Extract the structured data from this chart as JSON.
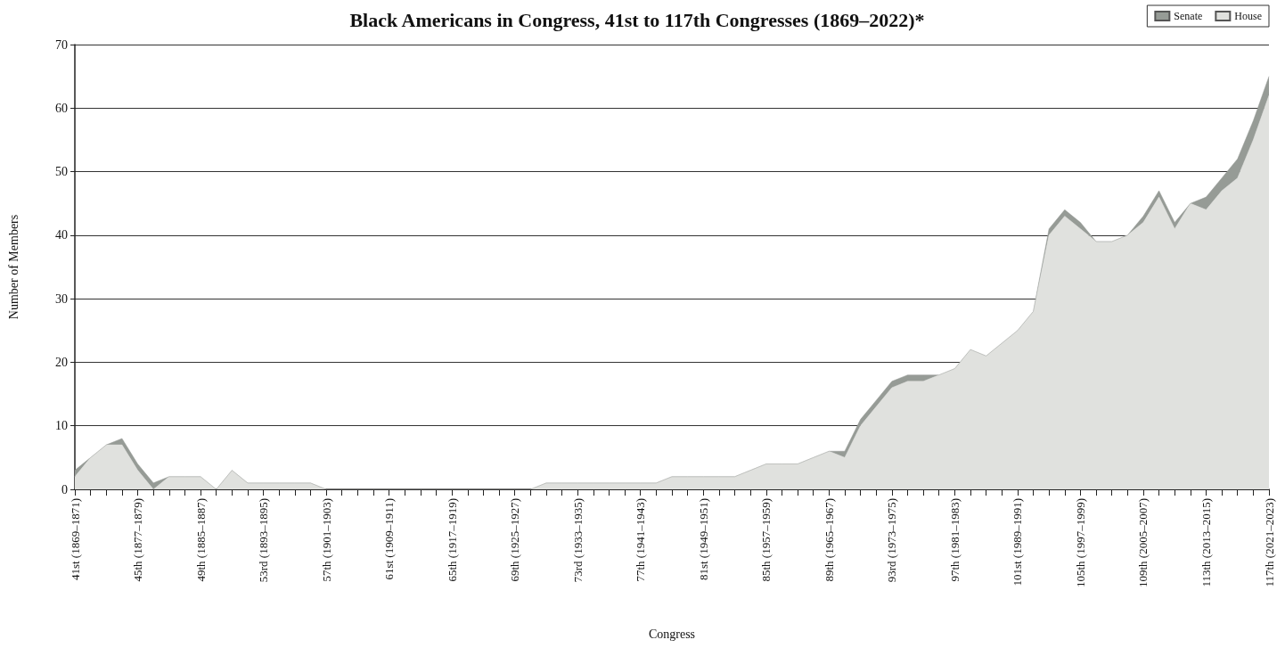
{
  "chart_data": {
    "type": "area",
    "title": "Black Americans in Congress, 41st to 117th Congresses (1869–2022)*",
    "xlabel": "Congress",
    "ylabel": "Number of Members",
    "categories": [
      "41st (1869–1871)",
      null,
      null,
      null,
      "45th (1877–1879)",
      null,
      null,
      null,
      "49th (1885–1887)",
      null,
      null,
      null,
      "53rd (1893–1895)",
      null,
      null,
      null,
      "57th (1901–1903)",
      null,
      null,
      null,
      "61st (1909–1911)",
      null,
      null,
      null,
      "65th (1917–1919)",
      null,
      null,
      null,
      "69th (1925–1927)",
      null,
      null,
      null,
      "73rd (1933–1935)",
      null,
      null,
      null,
      "77th (1941–1943)",
      null,
      null,
      null,
      "81st (1949–1951)",
      null,
      null,
      null,
      "85th (1957–1959)",
      null,
      null,
      null,
      "89th (1965–1967)",
      null,
      null,
      null,
      "93rd (1973–1975)",
      null,
      null,
      null,
      "97th (1981–1983)",
      null,
      null,
      null,
      "101st (1989–1991)",
      null,
      null,
      null,
      "105th (1997–1999)",
      null,
      null,
      null,
      "109th (2005–2007)",
      null,
      null,
      null,
      "113th (2013–2015)",
      null,
      null,
      null,
      "117th (2021–2023)"
    ],
    "series": [
      {
        "name": "House",
        "color": "#e0e1de",
        "values": [
          2,
          5,
          7,
          7,
          3,
          0,
          2,
          2,
          2,
          0,
          3,
          1,
          1,
          1,
          1,
          1,
          0,
          0,
          0,
          0,
          0,
          0,
          0,
          0,
          0,
          0,
          0,
          0,
          0,
          0,
          1,
          1,
          1,
          1,
          1,
          1,
          1,
          1,
          2,
          2,
          2,
          2,
          2,
          3,
          4,
          4,
          4,
          5,
          6,
          5,
          10,
          13,
          16,
          17,
          17,
          18,
          19,
          22,
          21,
          23,
          25,
          28,
          40,
          43,
          41,
          39,
          39,
          40,
          42,
          46,
          41,
          45,
          44,
          47,
          49,
          55,
          62
        ]
      },
      {
        "name": "Senate",
        "color": "#969b96",
        "values": [
          1,
          0,
          0,
          1,
          1,
          1,
          0,
          0,
          0,
          0,
          0,
          0,
          0,
          0,
          0,
          0,
          0,
          0,
          0,
          0,
          0,
          0,
          0,
          0,
          0,
          0,
          0,
          0,
          0,
          0,
          0,
          0,
          0,
          0,
          0,
          0,
          0,
          0,
          0,
          0,
          0,
          0,
          0,
          0,
          0,
          0,
          0,
          0,
          0,
          1,
          1,
          1,
          1,
          1,
          1,
          0,
          0,
          0,
          0,
          0,
          0,
          0,
          1,
          1,
          1,
          0,
          0,
          0,
          1,
          1,
          1,
          0,
          2,
          2,
          3,
          3,
          3
        ]
      }
    ],
    "stacked": true,
    "ylim": [
      0,
      70
    ],
    "yticks": [
      0,
      10,
      20,
      30,
      40,
      50,
      60,
      70
    ],
    "grid": "y",
    "legend": "top right",
    "marker": "none"
  }
}
